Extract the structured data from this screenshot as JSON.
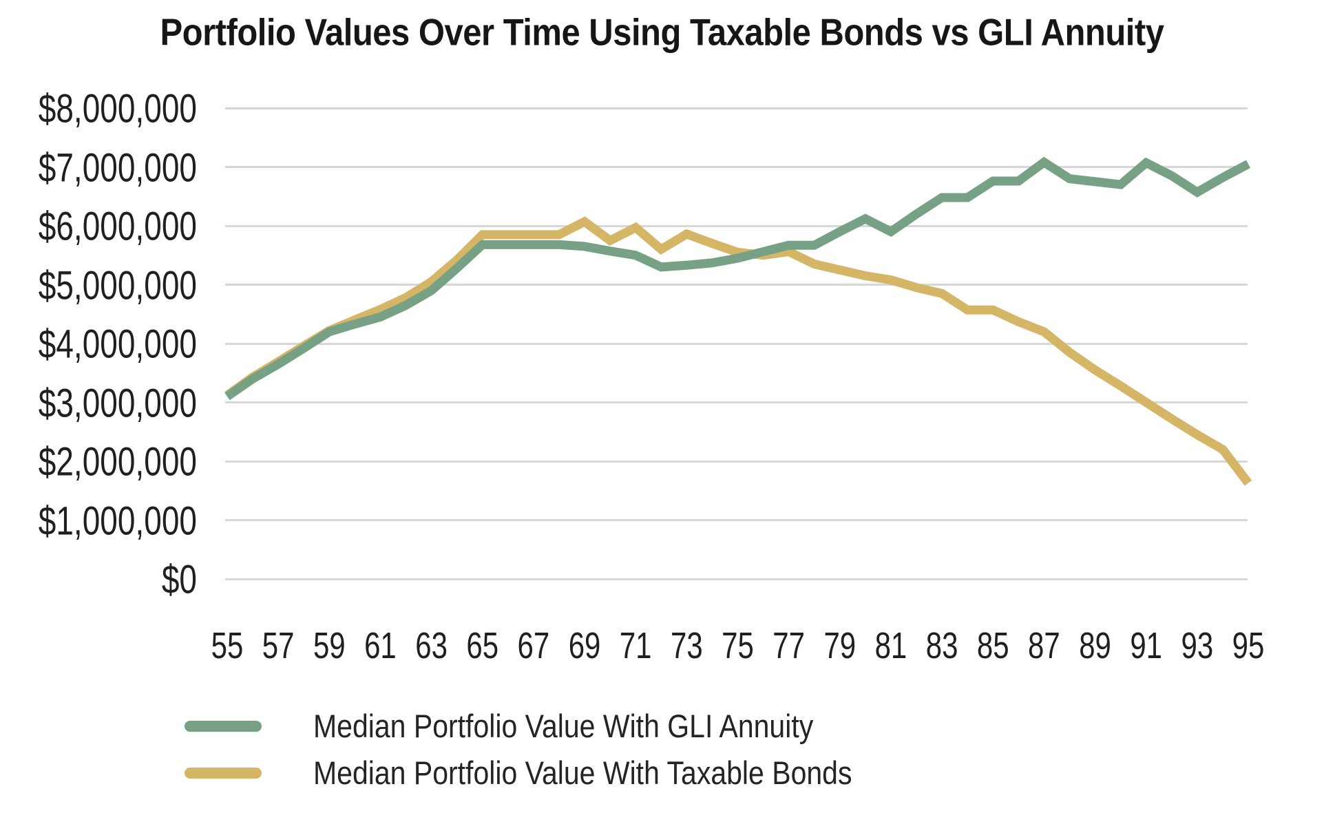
{
  "title": "Portfolio Values Over Time Using Taxable Bonds vs GLI Annuity",
  "chart_data": {
    "type": "line",
    "title": "Portfolio Values Over Time Using Taxable Bonds vs GLI Annuity",
    "x": [
      55,
      56,
      57,
      58,
      59,
      60,
      61,
      62,
      63,
      64,
      65,
      66,
      67,
      68,
      69,
      70,
      71,
      72,
      73,
      74,
      75,
      76,
      77,
      78,
      79,
      80,
      81,
      82,
      83,
      84,
      85,
      86,
      87,
      88,
      89,
      90,
      91,
      92,
      93,
      94,
      95
    ],
    "x_tick_labels": [
      "55",
      "57",
      "59",
      "61",
      "63",
      "65",
      "67",
      "69",
      "71",
      "73",
      "75",
      "77",
      "79",
      "81",
      "83",
      "85",
      "87",
      "89",
      "91",
      "93",
      "95"
    ],
    "y_tick_labels": [
      "$0",
      "$1,000,000",
      "$2,000,000",
      "$3,000,000",
      "$4,000,000",
      "$5,000,000",
      "$6,000,000",
      "$7,000,000",
      "$8,000,000"
    ],
    "ylim": [
      0,
      8000000
    ],
    "grid": "horizontal",
    "grid_color": "#d7d7d7",
    "text_color": "#1f1f1f",
    "legend_position": "bottom-left",
    "series": [
      {
        "id": "gli-annuity",
        "name": "Median Portfolio Value With GLI Annuity",
        "color": "#76a184",
        "values": [
          3100000,
          3400000,
          3650000,
          3920000,
          4200000,
          4330000,
          4450000,
          4650000,
          4900000,
          5280000,
          5680000,
          5680000,
          5680000,
          5680000,
          5650000,
          5570000,
          5500000,
          5300000,
          5330000,
          5370000,
          5450000,
          5560000,
          5670000,
          5670000,
          5900000,
          6120000,
          5900000,
          6200000,
          6480000,
          6480000,
          6760000,
          6760000,
          7080000,
          6800000,
          6750000,
          6700000,
          7070000,
          6850000,
          6570000,
          6820000,
          7050000
        ]
      },
      {
        "id": "taxable-bonds",
        "name": "Median Portfolio Value With Taxable Bonds",
        "color": "#d5b566",
        "values": [
          3120000,
          3430000,
          3690000,
          3960000,
          4220000,
          4400000,
          4580000,
          4780000,
          5050000,
          5420000,
          5850000,
          5850000,
          5850000,
          5850000,
          6070000,
          5750000,
          5970000,
          5600000,
          5860000,
          5700000,
          5550000,
          5500000,
          5560000,
          5350000,
          5250000,
          5150000,
          5080000,
          4950000,
          4850000,
          4570000,
          4570000,
          4370000,
          4200000,
          3850000,
          3550000,
          3280000,
          3000000,
          2720000,
          2450000,
          2200000,
          1630000
        ]
      }
    ]
  }
}
